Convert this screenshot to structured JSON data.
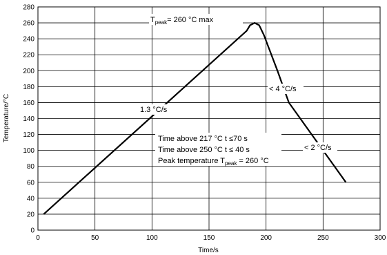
{
  "chart_data": {
    "type": "line",
    "title": "",
    "xlabel": "Time/s",
    "ylabel": "Temperature/°C",
    "xlim": [
      0,
      300
    ],
    "ylim": [
      0,
      280
    ],
    "x_ticks": [
      "0",
      "50",
      "100",
      "150",
      "200",
      "250",
      "300"
    ],
    "y_ticks": [
      "0",
      "20",
      "40",
      "60",
      "80",
      "100",
      "120",
      "140",
      "160",
      "180",
      "200",
      "220",
      "240",
      "260",
      "280"
    ],
    "grid": true,
    "series": [
      {
        "x": [
          5,
          183,
          186,
          190,
          194,
          198,
          210,
          220,
          270
        ],
        "y": [
          20,
          250,
          257,
          260,
          257,
          245,
          200,
          160,
          60
        ]
      }
    ],
    "annotations": {
      "peak": {
        "prefix": "T",
        "sub": "peak",
        "suffix": "= 260 °C max"
      },
      "ramp_up": "1.3 °C/s",
      "ramp_down_1": "< 4 °C/s",
      "ramp_down_2": "< 2 °C/s",
      "time_217": "Time above 217 °C t ≤70 s",
      "time_250": "Time above 250 °C t ≤ 40 s",
      "peak_temp": {
        "prefix": "Peak temperature T",
        "sub": "peak",
        "suffix": " = 260 °C"
      }
    }
  }
}
